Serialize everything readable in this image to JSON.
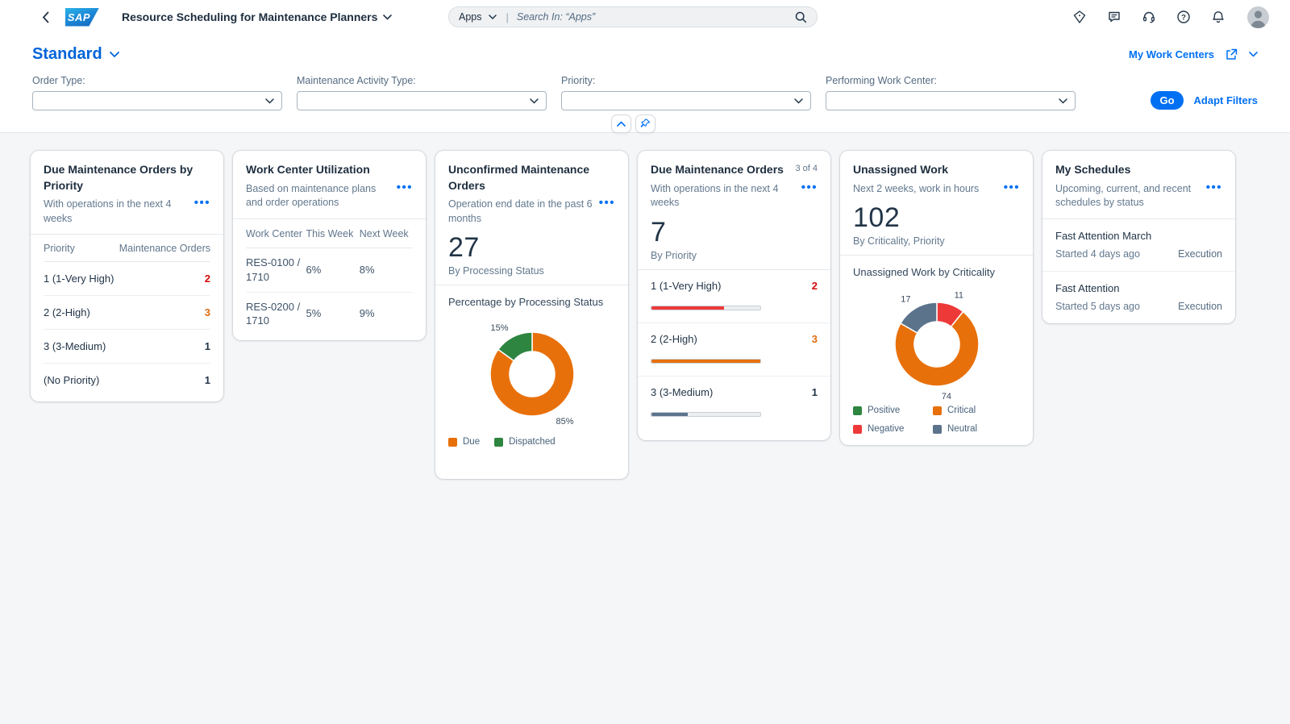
{
  "shell": {
    "product_title": "Resource Scheduling for Maintenance Planners",
    "logo_text": "SAP",
    "search": {
      "scope": "Apps",
      "placeholder": "Search In: “Apps”"
    },
    "icons": [
      "back-icon",
      "diamond-icon",
      "feedback-icon",
      "support-headset-icon",
      "help-icon",
      "notifications-bell-icon",
      "user-avatar",
      "search-icon"
    ]
  },
  "page": {
    "variant_title": "Standard",
    "work_centers_link": "My Work Centers"
  },
  "filters": {
    "fields": [
      {
        "label": "Order Type:",
        "value": ""
      },
      {
        "label": "Maintenance Activity Type:",
        "value": ""
      },
      {
        "label": "Priority:",
        "value": ""
      },
      {
        "label": "Performing Work Center:",
        "value": ""
      }
    ],
    "go_label": "Go",
    "adapt_filters_label": "Adapt Filters"
  },
  "colors": {
    "accent_blue": "#0070F2",
    "orange": "#E8700A",
    "green": "#2E8540",
    "red": "#EE3939",
    "slate": "#5B738B",
    "value_red": "#D20A0A",
    "value_orange": "#DE6B0C",
    "value_dark": "#223548"
  },
  "cards": {
    "due_by_priority": {
      "title": "Due Maintenance Orders by Priority",
      "subtitle": "With operations in the next 4 weeks",
      "columns": [
        "Priority",
        "Maintenance Orders"
      ],
      "rows": [
        {
          "label": "1 (1-Very High)",
          "value": "2",
          "value_color": "#D20A0A"
        },
        {
          "label": "2 (2-High)",
          "value": "3",
          "value_color": "#DE6B0C"
        },
        {
          "label": "3 (3-Medium)",
          "value": "1",
          "value_color": "#223548"
        },
        {
          "label": "(No Priority)",
          "value": "1",
          "value_color": "#223548"
        }
      ]
    },
    "work_center_utilization": {
      "title": "Work Center Utilization",
      "subtitle": "Based on maintenance plans and order operations",
      "columns": [
        "Work Center",
        "This Week",
        "Next Week"
      ],
      "rows": [
        {
          "work_center": "RES-0100 / 1710",
          "this_week": "6%",
          "next_week": "8%"
        },
        {
          "work_center": "RES-0200 / 1710",
          "this_week": "5%",
          "next_week": "9%"
        }
      ]
    },
    "unconfirmed": {
      "title": "Unconfirmed Maintenance Orders",
      "subtitle": "Operation end date in the past 6 months",
      "kpi": "27",
      "kpi_caption": "By Processing Status",
      "chart_title": "Percentage by Processing Status"
    },
    "due_orders": {
      "title": "Due Maintenance Orders",
      "counter": "3 of 4",
      "subtitle": "With operations in the next 4 weeks",
      "kpi": "7",
      "kpi_caption": "By Priority",
      "items": [
        {
          "label": "1 (1-Very High)",
          "value": 2,
          "max": 3,
          "display_value": "2",
          "value_color": "#D20A0A",
          "bar_color": "#EE3939"
        },
        {
          "label": "2 (2-High)",
          "value": 3,
          "max": 3,
          "display_value": "3",
          "value_color": "#DE6B0C",
          "bar_color": "#E8700A"
        },
        {
          "label": "3 (3-Medium)",
          "value": 1,
          "max": 3,
          "display_value": "1",
          "value_color": "#223548",
          "bar_color": "#5B738B"
        }
      ]
    },
    "unassigned": {
      "title": "Unassigned Work",
      "subtitle": "Next 2 weeks, work in hours",
      "kpi": "102",
      "kpi_caption": "By Criticality, Priority",
      "chart_title": "Unassigned Work by Criticality"
    },
    "my_schedules": {
      "title": "My Schedules",
      "subtitle": "Upcoming, current, and recent schedules by status",
      "items": [
        {
          "name": "Fast Attention March",
          "started": "Started 4 days ago",
          "status": "Execution"
        },
        {
          "name": "Fast Attention",
          "started": "Started 5 days ago",
          "status": "Execution"
        }
      ]
    }
  },
  "chart_data": [
    {
      "type": "pie",
      "subtype": "donut",
      "title": "Percentage by Processing Status",
      "segments": [
        {
          "label": "Due",
          "value": 85,
          "color": "#E8700A"
        },
        {
          "label": "Dispatched",
          "value": 15,
          "color": "#2E8540"
        }
      ],
      "label_suffix": "%",
      "legend": [
        {
          "label": "Due",
          "color": "#E8700A"
        },
        {
          "label": "Dispatched",
          "color": "#2E8540"
        }
      ],
      "legend_position": "bottom"
    },
    {
      "type": "pie",
      "subtype": "donut",
      "title": "Unassigned Work by Criticality",
      "segments": [
        {
          "label": "Negative",
          "value": 11,
          "color": "#EE3939"
        },
        {
          "label": "Critical",
          "value": 74,
          "color": "#E8700A"
        },
        {
          "label": "Neutral",
          "value": 17,
          "color": "#5B738B"
        }
      ],
      "label_suffix": "",
      "legend": [
        {
          "label": "Positive",
          "color": "#2E8540"
        },
        {
          "label": "Critical",
          "color": "#E8700A"
        },
        {
          "label": "Negative",
          "color": "#EE3939"
        },
        {
          "label": "Neutral",
          "color": "#5B738B"
        }
      ],
      "legend_position": "bottom"
    }
  ]
}
